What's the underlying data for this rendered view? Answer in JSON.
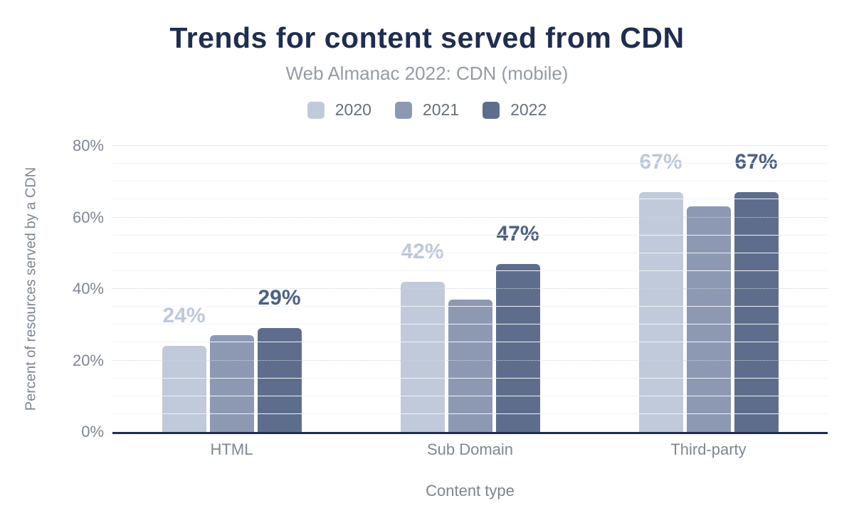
{
  "chart_data": {
    "type": "bar",
    "title": "Trends for content served from CDN",
    "subtitle": "Web Almanac 2022: CDN (mobile)",
    "xlabel": "Content type",
    "ylabel": "Percent of resources served by a CDN",
    "categories": [
      "HTML",
      "Sub Domain",
      "Third-party"
    ],
    "series": [
      {
        "name": "2020",
        "color": "#c1cada",
        "label_color": "#bdc8da",
        "values": [
          24,
          42,
          67
        ],
        "data_labels": [
          "24%",
          "42%",
          "67%"
        ]
      },
      {
        "name": "2021",
        "color": "#8d99b3",
        "label_color": null,
        "values": [
          27,
          37,
          63
        ],
        "data_labels": [
          null,
          null,
          null
        ]
      },
      {
        "name": "2022",
        "color": "#5e6d8c",
        "label_color": "#4d6086",
        "values": [
          29,
          47,
          67
        ],
        "data_labels": [
          "29%",
          "47%",
          "67%"
        ]
      }
    ],
    "ylim": [
      0,
      80
    ],
    "yticks": [
      {
        "value": 0,
        "label": "0%"
      },
      {
        "value": 20,
        "label": "20%"
      },
      {
        "value": 40,
        "label": "40%"
      },
      {
        "value": 60,
        "label": "60%"
      },
      {
        "value": 80,
        "label": "80%"
      }
    ],
    "grid": {
      "minor_step": 5,
      "major_step": 20,
      "minor_style": "solid",
      "major_style": "dotted"
    },
    "legend_position": "top"
  },
  "colors": {
    "title": "#1f2d4f",
    "subtitle": "#949ba6",
    "legend_text": "#676f7c",
    "axis_text": "#7e8694",
    "axis_title_text": "#7d8591",
    "axis_line": "#1f2d4f",
    "minor_grid": "#f1f3f6",
    "major_grid": "#d0d5dd",
    "background": "#ffffff"
  }
}
